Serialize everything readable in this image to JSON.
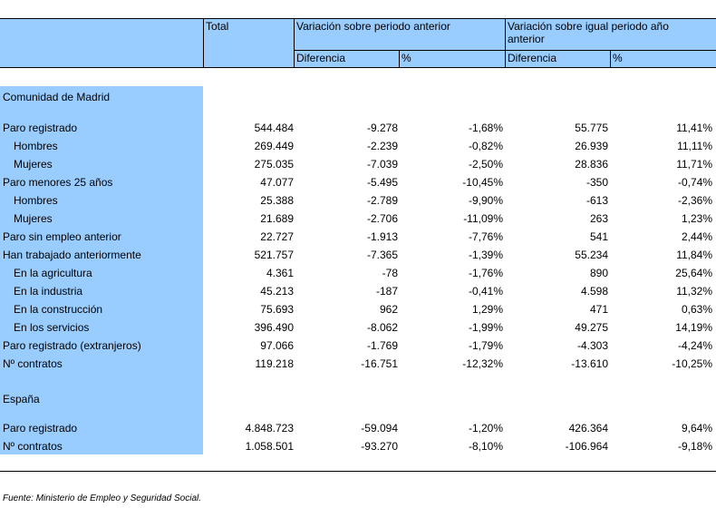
{
  "header": {
    "total": "Total",
    "var_prev": "Variación sobre periodo anterior",
    "var_year": "Variación sobre igual periodo año anterior",
    "diff1": "Diferencia",
    "pct1": "%",
    "diff2": "Diferencia",
    "pct2": "%"
  },
  "sections": {
    "madrid": "Comunidad de Madrid",
    "spain": "España"
  },
  "madrid_rows": [
    {
      "label": "Paro registrado",
      "total": "544.484",
      "d1": "-9.278",
      "p1": "-1,68%",
      "d2": "55.775",
      "p2": "11,41%"
    },
    {
      "label": "Hombres",
      "total": "269.449",
      "d1": "-2.239",
      "p1": "-0,82%",
      "d2": "26.939",
      "p2": "11,11%"
    },
    {
      "label": "Mujeres",
      "total": "275.035",
      "d1": "-7.039",
      "p1": "-2,50%",
      "d2": "28.836",
      "p2": "11,71%"
    },
    {
      "label": "Paro menores 25 años",
      "total": "47.077",
      "d1": "-5.495",
      "p1": "-10,45%",
      "d2": "-350",
      "p2": "-0,74%"
    },
    {
      "label": "Hombres",
      "total": "25.388",
      "d1": "-2.789",
      "p1": "-9,90%",
      "d2": "-613",
      "p2": "-2,36%"
    },
    {
      "label": "Mujeres",
      "total": "21.689",
      "d1": "-2.706",
      "p1": "-11,09%",
      "d2": "263",
      "p2": "1,23%"
    },
    {
      "label": "Paro sin empleo anterior",
      "total": "22.727",
      "d1": "-1.913",
      "p1": "-7,76%",
      "d2": "541",
      "p2": "2,44%"
    },
    {
      "label": "Han trabajado anteriormente",
      "total": "521.757",
      "d1": "-7.365",
      "p1": "-1,39%",
      "d2": "55.234",
      "p2": "11,84%"
    },
    {
      "label": "En la agricultura",
      "total": "4.361",
      "d1": "-78",
      "p1": "-1,76%",
      "d2": "890",
      "p2": "25,64%"
    },
    {
      "label": "En la industria",
      "total": "45.213",
      "d1": "-187",
      "p1": "-0,41%",
      "d2": "4.598",
      "p2": "11,32%"
    },
    {
      "label": "En la construcción",
      "total": "75.693",
      "d1": "962",
      "p1": "1,29%",
      "d2": "471",
      "p2": "0,63%"
    },
    {
      "label": "En los servicios",
      "total": "396.490",
      "d1": "-8.062",
      "p1": "-1,99%",
      "d2": "49.275",
      "p2": "14,19%"
    },
    {
      "label": "Paro registrado (extranjeros)",
      "total": "97.066",
      "d1": "-1.769",
      "p1": "-1,79%",
      "d2": "-4.303",
      "p2": "-4,24%"
    },
    {
      "label": "Nº contratos",
      "total": "119.218",
      "d1": "-16.751",
      "p1": "-12,32%",
      "d2": "-13.610",
      "p2": "-10,25%"
    }
  ],
  "spain_rows": [
    {
      "label": "Paro registrado",
      "total": "4.848.723",
      "d1": "-59.094",
      "p1": "-1,20%",
      "d2": "426.364",
      "p2": "9,64%"
    },
    {
      "label": "Nº contratos",
      "total": "1.058.501",
      "d1": "-93.270",
      "p1": "-8,10%",
      "d2": "-106.964",
      "p2": "-9,18%"
    }
  ],
  "source": "Fuente: Ministerio de Empleo y Seguridad Social."
}
